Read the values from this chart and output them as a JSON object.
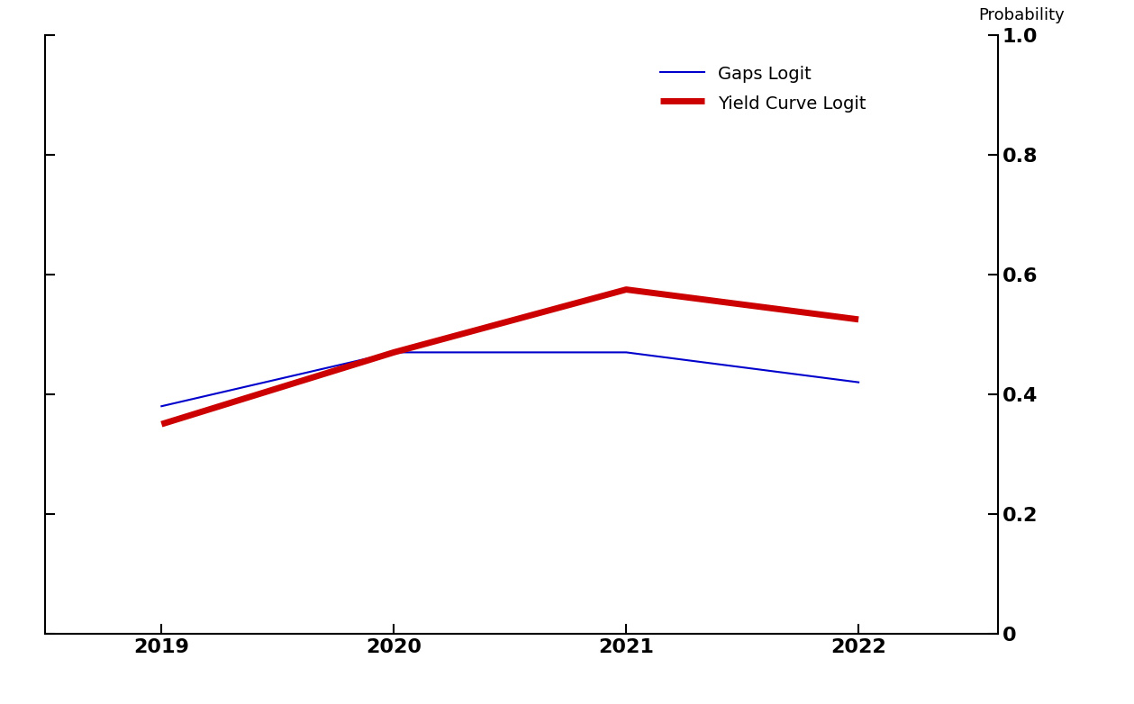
{
  "x": [
    2019,
    2020,
    2021,
    2022
  ],
  "gaps_logit": [
    0.38,
    0.47,
    0.47,
    0.42
  ],
  "yield_curve_logit": [
    0.35,
    0.47,
    0.575,
    0.525
  ],
  "gaps_color": "#0000cc",
  "yield_color": "#cc0000",
  "gaps_linewidth": 1.5,
  "yield_linewidth": 5.0,
  "ylabel": "Probability",
  "ylim": [
    0,
    1.0
  ],
  "yticks": [
    0,
    0.2,
    0.4,
    0.6,
    0.8,
    1.0
  ],
  "ytick_labels": [
    "0",
    "0.2",
    "0.4",
    "0.6",
    "0.8",
    "1.0"
  ],
  "xlim": [
    2018.5,
    2022.6
  ],
  "xticks": [
    2019,
    2020,
    2021,
    2022
  ],
  "legend_gaps": "Gaps Logit",
  "legend_yield": "Yield Curve Logit",
  "background_color": "#ffffff",
  "fontsize_ticks": 16,
  "fontsize_label": 13,
  "fontweight": "bold"
}
